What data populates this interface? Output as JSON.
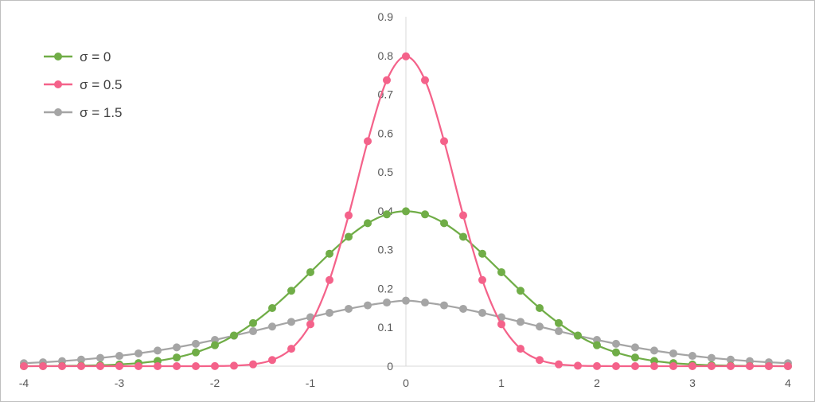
{
  "chart_data": {
    "type": "line",
    "title": "",
    "xlabel": "",
    "ylabel": "",
    "xlim": [
      -4,
      4
    ],
    "ylim": [
      0,
      0.9
    ],
    "x_ticks": [
      "-4",
      "-3",
      "-2",
      "-1",
      "0",
      "1",
      "2",
      "3",
      "4"
    ],
    "y_ticks": [
      "0",
      "0.1",
      "0.2",
      "0.3",
      "0.4",
      "0.5",
      "0.6",
      "0.7",
      "0.8",
      "0.9"
    ],
    "grid": false,
    "legend_position": "top-left",
    "x": [
      -4.0,
      -3.8,
      -3.6,
      -3.4,
      -3.2,
      -3.0,
      -2.8,
      -2.6,
      -2.4,
      -2.2,
      -2.0,
      -1.8,
      -1.6,
      -1.4,
      -1.2,
      -1.0,
      -0.8,
      -0.6,
      -0.4,
      -0.2,
      0.0,
      0.2,
      0.4,
      0.6,
      0.8,
      1.0,
      1.2,
      1.4,
      1.6,
      1.8,
      2.0,
      2.2,
      2.4,
      2.6,
      2.8,
      3.0,
      3.2,
      3.4,
      3.6,
      3.8,
      4.0
    ],
    "series": [
      {
        "name": "σ = 0",
        "color": "#70ad47",
        "values": [
          0.0001,
          0.0003,
          0.0006,
          0.0012,
          0.0024,
          0.0044,
          0.0079,
          0.0136,
          0.0224,
          0.0355,
          0.054,
          0.079,
          0.1109,
          0.1497,
          0.1942,
          0.242,
          0.2897,
          0.3332,
          0.3683,
          0.391,
          0.3989,
          0.391,
          0.3683,
          0.3332,
          0.2897,
          0.242,
          0.1942,
          0.1497,
          0.1109,
          0.079,
          0.054,
          0.0355,
          0.0224,
          0.0136,
          0.0079,
          0.0044,
          0.0024,
          0.0012,
          0.0006,
          0.0003,
          0.0001
        ]
      },
      {
        "name": "σ = 0.5",
        "color": "#f4628a",
        "values": [
          0.0,
          0.0,
          0.0,
          0.0,
          0.0,
          0.0,
          0.0,
          0.0,
          0.0,
          0.0,
          0.0003,
          0.0012,
          0.0048,
          0.0159,
          0.0449,
          0.108,
          0.2218,
          0.3884,
          0.5794,
          0.7365,
          0.7979,
          0.7365,
          0.5794,
          0.3884,
          0.2218,
          0.108,
          0.0449,
          0.0159,
          0.0048,
          0.0012,
          0.0003,
          0.0,
          0.0,
          0.0,
          0.0,
          0.0,
          0.0,
          0.0,
          0.0,
          0.0,
          0.0
        ]
      },
      {
        "name": "σ = 1.5",
        "color": "#a5a5a5",
        "values": [
          0.0077,
          0.0101,
          0.0131,
          0.0168,
          0.0213,
          0.0266,
          0.0329,
          0.0402,
          0.0484,
          0.0576,
          0.0677,
          0.0786,
          0.0901,
          0.102,
          0.1141,
          0.126,
          0.1373,
          0.1477,
          0.1567,
          0.1639,
          0.1688,
          0.1639,
          0.1567,
          0.1477,
          0.1373,
          0.126,
          0.1141,
          0.102,
          0.0901,
          0.0786,
          0.0677,
          0.0576,
          0.0484,
          0.0402,
          0.0329,
          0.0266,
          0.0213,
          0.0168,
          0.0131,
          0.0101,
          0.0077
        ]
      }
    ]
  }
}
